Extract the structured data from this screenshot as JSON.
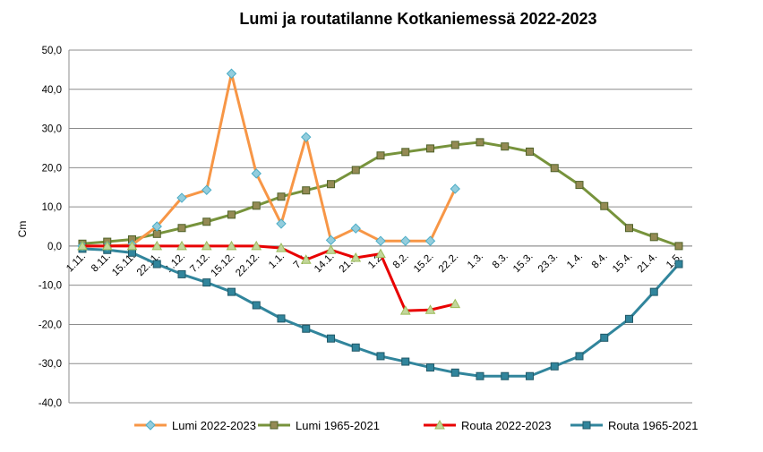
{
  "chart_data": {
    "type": "line",
    "title": "Lumi ja routatilanne Kotkaniemessä 2022-2023",
    "ylabel": "Cm",
    "xlabel": "",
    "ylim": [
      -40,
      50
    ],
    "ytick_labels": [
      "50,0",
      "40,0",
      "30,0",
      "20,0",
      "10,0",
      "0,0",
      "-10,0",
      "-20,0",
      "-30,0",
      "-40,0"
    ],
    "categories": [
      "1.11.",
      "8.11.",
      "15.11.",
      "22.11.",
      "1.12.",
      "7.12.",
      "15.12.",
      "22.12.",
      "1.1.",
      "7.1.",
      "14.1.",
      "21.1.",
      "1.2.",
      "8.2.",
      "15.2.",
      "22.2.",
      "1.3.",
      "8.3.",
      "15.3.",
      "23.3.",
      "1.4.",
      "8.4.",
      "15.4.",
      "21.4.",
      "1.5."
    ],
    "grid": "horizontal",
    "legend_position": "bottom",
    "series": [
      {
        "name": "Lumi 2022-2023",
        "color": "#F79646",
        "marker": "diamond",
        "marker_fill": "#93CDDD",
        "marker_stroke": "#4BACC6",
        "values": [
          0,
          0,
          0.3,
          5,
          12.3,
          14.3,
          44,
          18.5,
          5.7,
          27.8,
          1.5,
          4.5,
          1.3,
          1.3,
          1.3,
          14.6,
          null,
          null,
          null,
          null,
          null,
          null,
          null,
          null,
          null
        ]
      },
      {
        "name": "Lumi 1965-2021",
        "color": "#77933C",
        "marker": "square",
        "marker_fill": "#948A54",
        "marker_stroke": "#4F6228",
        "values": [
          0.6,
          1.1,
          1.7,
          3.1,
          4.6,
          6.2,
          8,
          10.3,
          12.6,
          14.2,
          15.8,
          19.4,
          23.1,
          24,
          24.9,
          25.8,
          26.5,
          25.4,
          24.1,
          19.9,
          15.6,
          10.2,
          4.6,
          2.3,
          0
        ]
      },
      {
        "name": "Routa 2022-2023",
        "color": "#E80000",
        "marker": "triangle",
        "marker_fill": "#C3D69B",
        "marker_stroke": "#9BBB59",
        "values": [
          0,
          0,
          0,
          0,
          0,
          0,
          0,
          0,
          -0.5,
          -3.5,
          -1,
          -3,
          -2,
          -16.5,
          -16.3,
          -14.8,
          null,
          null,
          null,
          null,
          null,
          null,
          null,
          null,
          null
        ]
      },
      {
        "name": "Routa 1965-2021",
        "color": "#31859C",
        "marker": "square",
        "marker_fill": "#31859C",
        "marker_stroke": "#215968",
        "values": [
          -0.7,
          -1,
          -1.7,
          -4.6,
          -7.2,
          -9.3,
          -11.7,
          -15.1,
          -18.5,
          -21.1,
          -23.6,
          -25.9,
          -28.1,
          -29.5,
          -31,
          -32.3,
          -33.2,
          -33.2,
          -33.2,
          -30.7,
          -28.1,
          -23.4,
          -18.6,
          -11.7,
          -4.6
        ]
      }
    ]
  }
}
